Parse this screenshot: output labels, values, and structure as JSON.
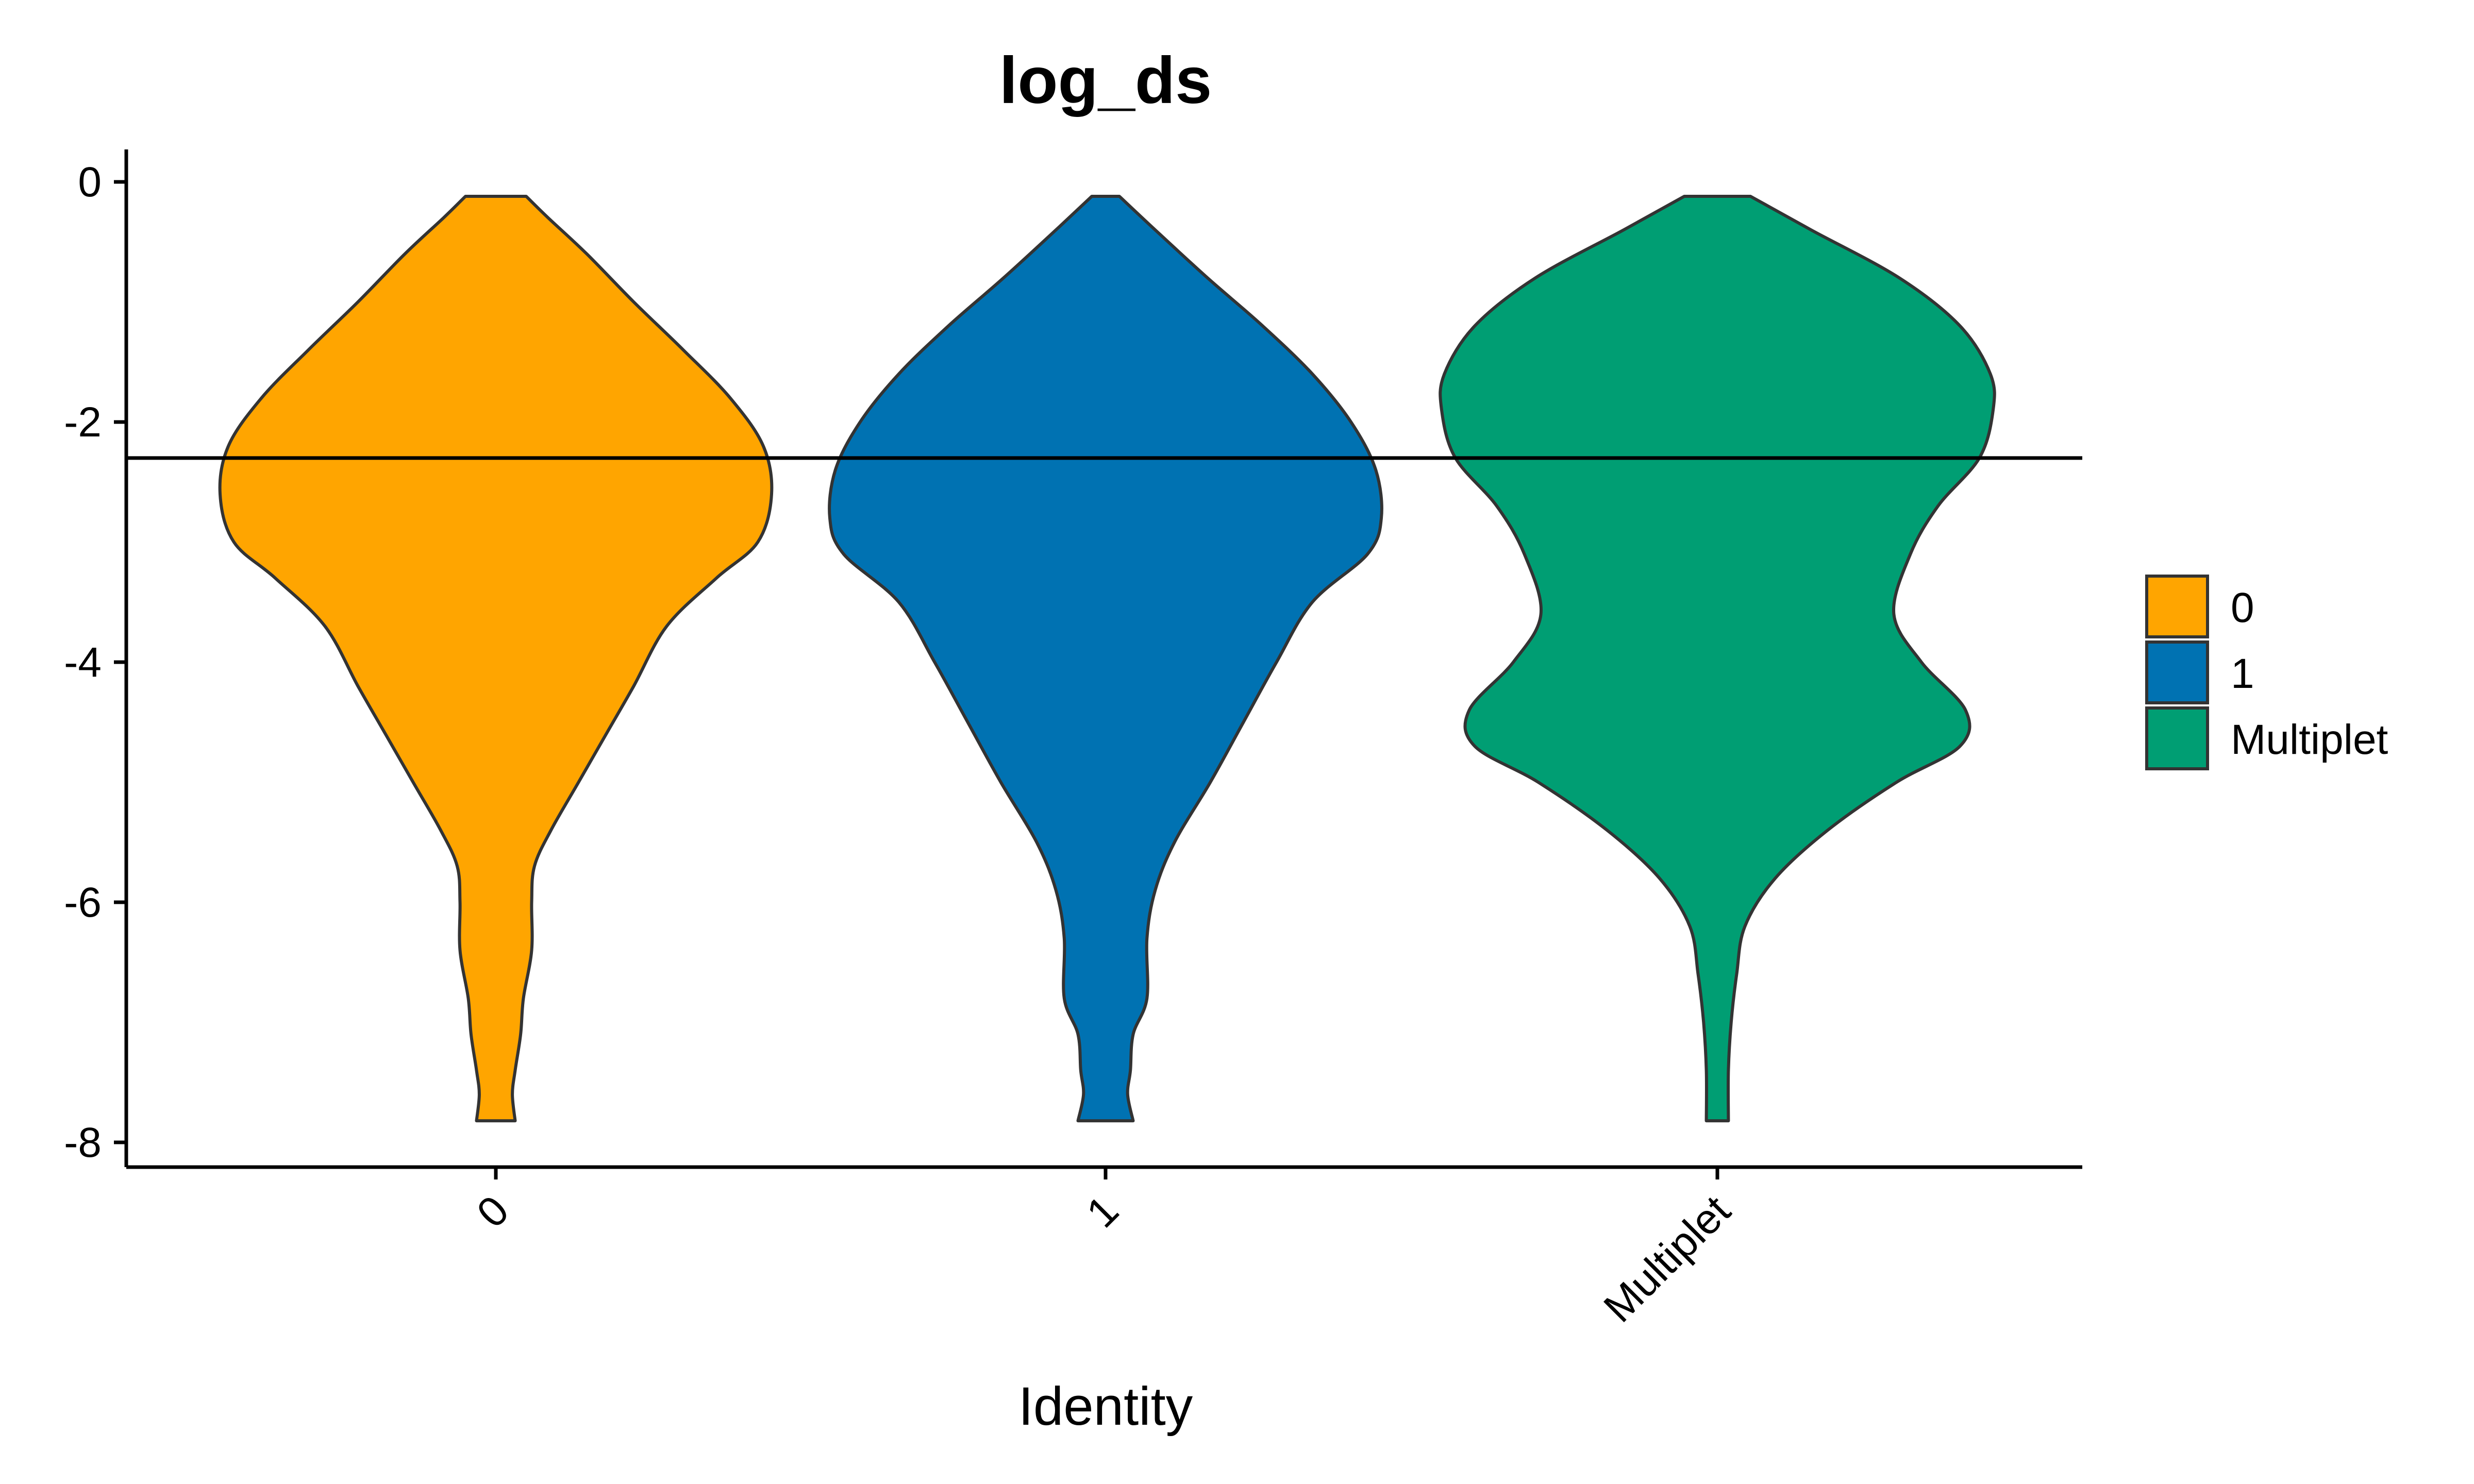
{
  "chart_data": {
    "type": "violin",
    "title": "log_ds",
    "xlabel": "Identity",
    "ylabel": "",
    "categories": [
      "0",
      "1",
      "Multiplet"
    ],
    "ylim": [
      -8.2,
      0.3
    ],
    "yticks": [
      0,
      -2,
      -4,
      -6,
      -8
    ],
    "ytick_labels": [
      "0",
      "-2",
      "-4",
      "-6",
      "-8"
    ],
    "hline": -2.3,
    "legend": {
      "position": "right",
      "entries": [
        "0",
        "1",
        "Multiplet"
      ]
    },
    "colors": {
      "0": "#FFA500",
      "1": "#0072B2",
      "Multiplet": "#009E73",
      "outline": "#333333",
      "axis": "#000000"
    },
    "series": [
      {
        "category": "0",
        "min": -7.82,
        "max": -0.12,
        "profile": [
          [
            -0.12,
            0.11
          ],
          [
            -0.3,
            0.19
          ],
          [
            -0.6,
            0.33
          ],
          [
            -1.0,
            0.5
          ],
          [
            -1.4,
            0.68
          ],
          [
            -1.8,
            0.85
          ],
          [
            -2.2,
            0.97
          ],
          [
            -2.6,
            1.0
          ],
          [
            -3.0,
            0.95
          ],
          [
            -3.3,
            0.8
          ],
          [
            -3.7,
            0.62
          ],
          [
            -4.2,
            0.5
          ],
          [
            -4.6,
            0.4
          ],
          [
            -5.0,
            0.3
          ],
          [
            -5.4,
            0.2
          ],
          [
            -5.7,
            0.14
          ],
          [
            -6.0,
            0.13
          ],
          [
            -6.4,
            0.13
          ],
          [
            -6.8,
            0.1
          ],
          [
            -7.1,
            0.09
          ],
          [
            -7.4,
            0.07
          ],
          [
            -7.6,
            0.06
          ],
          [
            -7.82,
            0.07
          ]
        ]
      },
      {
        "category": "1",
        "min": -7.82,
        "max": -0.12,
        "profile": [
          [
            -0.12,
            0.05
          ],
          [
            -0.4,
            0.18
          ],
          [
            -0.8,
            0.37
          ],
          [
            -1.2,
            0.57
          ],
          [
            -1.6,
            0.75
          ],
          [
            -2.0,
            0.89
          ],
          [
            -2.4,
            0.98
          ],
          [
            -2.8,
            1.0
          ],
          [
            -3.1,
            0.95
          ],
          [
            -3.5,
            0.75
          ],
          [
            -4.0,
            0.62
          ],
          [
            -4.5,
            0.5
          ],
          [
            -5.0,
            0.38
          ],
          [
            -5.5,
            0.25
          ],
          [
            -5.9,
            0.18
          ],
          [
            -6.3,
            0.15
          ],
          [
            -6.8,
            0.15
          ],
          [
            -7.1,
            0.1
          ],
          [
            -7.4,
            0.09
          ],
          [
            -7.6,
            0.08
          ],
          [
            -7.82,
            0.1
          ]
        ]
      },
      {
        "category": "Multiplet",
        "min": -7.82,
        "max": -0.12,
        "profile": [
          [
            -0.12,
            0.12
          ],
          [
            -0.4,
            0.34
          ],
          [
            -0.8,
            0.66
          ],
          [
            -1.2,
            0.88
          ],
          [
            -1.6,
            0.99
          ],
          [
            -1.9,
            1.0
          ],
          [
            -2.3,
            0.95
          ],
          [
            -2.7,
            0.8
          ],
          [
            -3.1,
            0.7
          ],
          [
            -3.6,
            0.64
          ],
          [
            -4.0,
            0.74
          ],
          [
            -4.4,
            0.9
          ],
          [
            -4.7,
            0.88
          ],
          [
            -5.0,
            0.65
          ],
          [
            -5.4,
            0.4
          ],
          [
            -5.8,
            0.21
          ],
          [
            -6.2,
            0.1
          ],
          [
            -6.6,
            0.07
          ],
          [
            -7.0,
            0.05
          ],
          [
            -7.4,
            0.04
          ],
          [
            -7.82,
            0.04
          ]
        ]
      }
    ]
  }
}
